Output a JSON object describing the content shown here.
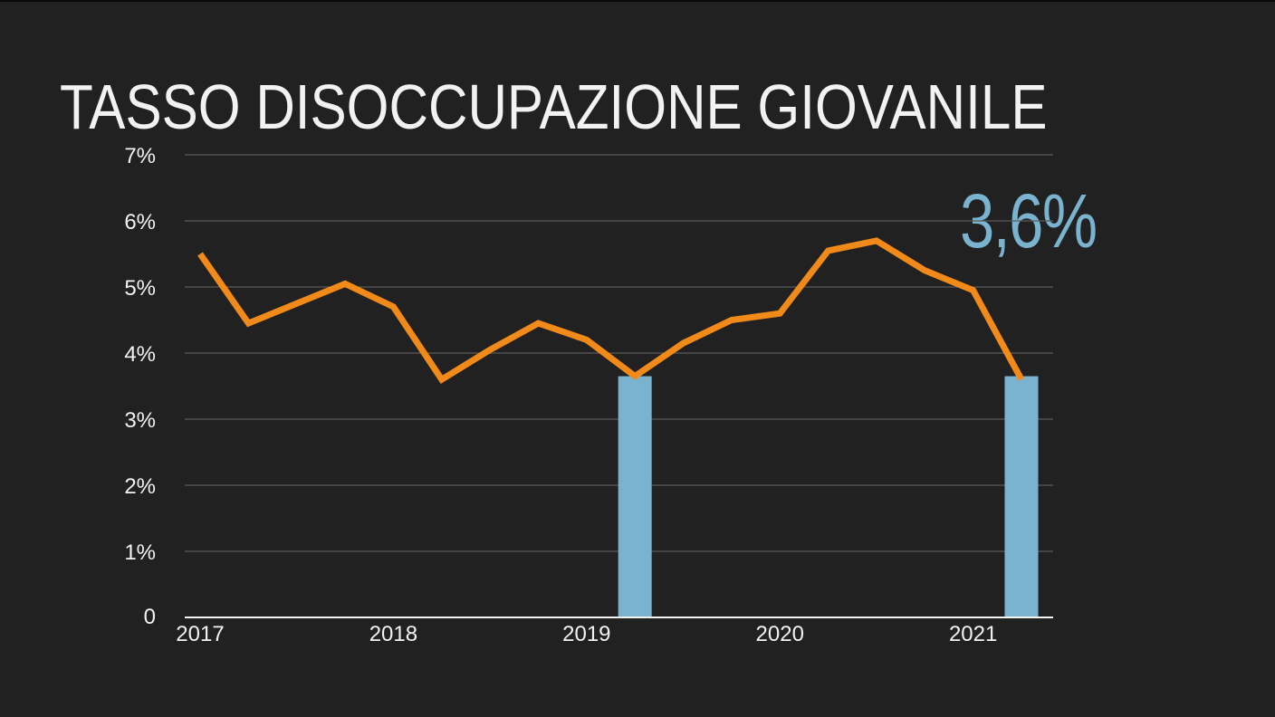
{
  "title": "TASSO DISOCCUPAZIONE GIOVANILE",
  "highlight_value": "3,6%",
  "colors": {
    "background": "#212121",
    "line": "#f28a1a",
    "bars": "#7ab3cf",
    "grid": "#5a5a5a",
    "text": "#f2f2f2"
  },
  "chart_data": {
    "type": "line",
    "title": "TASSO DISOCCUPAZIONE GIOVANILE",
    "xlabel": "",
    "ylabel": "",
    "ylim": [
      0,
      7
    ],
    "grid": true,
    "y_ticks": [
      {
        "value": 0,
        "label": "0"
      },
      {
        "value": 1,
        "label": "1%"
      },
      {
        "value": 2,
        "label": "2%"
      },
      {
        "value": 3,
        "label": "3%"
      },
      {
        "value": 4,
        "label": "4%"
      },
      {
        "value": 5,
        "label": "5%"
      },
      {
        "value": 6,
        "label": "6%"
      },
      {
        "value": 7,
        "label": "7%"
      }
    ],
    "x_ticks": [
      "2017",
      "2018",
      "2019",
      "2020",
      "2021"
    ],
    "series": [
      {
        "type": "line",
        "x": [
          2017.0,
          2017.25,
          2017.5,
          2017.75,
          2018.0,
          2018.25,
          2018.5,
          2018.75,
          2019.0,
          2019.25,
          2019.5,
          2019.75,
          2020.0,
          2020.25,
          2020.5,
          2020.75,
          2021.0,
          2021.25
        ],
        "values": [
          5.5,
          4.45,
          4.75,
          5.05,
          4.7,
          3.6,
          4.05,
          4.45,
          4.2,
          3.65,
          4.15,
          4.5,
          4.6,
          5.55,
          5.7,
          5.25,
          4.95,
          3.6
        ]
      },
      {
        "type": "bar",
        "x": [
          2019.25,
          2021.25
        ],
        "values": [
          3.65,
          3.65
        ]
      }
    ]
  }
}
